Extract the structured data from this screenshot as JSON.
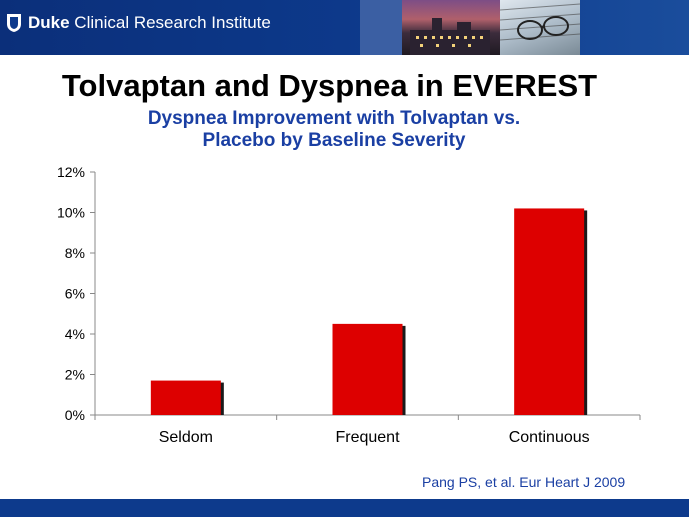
{
  "header": {
    "logo_bold": "Duke",
    "logo_rest": " Clinical Research Institute"
  },
  "slide": {
    "title": "Tolvaptan and Dyspnea in EVEREST",
    "subtitle_line1": "Dyspnea Improvement with Tolvaptan vs.",
    "subtitle_line2": "Placebo by Baseline Severity",
    "citation": "Pang PS, et al. Eur Heart J 2009"
  },
  "colors": {
    "bar": "#dd0000",
    "bar_shadow": "#1a1a1a",
    "header": "#0d3a8c",
    "subtitle": "#1a3fa3"
  },
  "chart_data": {
    "type": "bar",
    "title": "Dyspnea Improvement with Tolvaptan vs. Placebo by Baseline Severity",
    "xlabel": "",
    "ylabel": "",
    "categories": [
      "Seldom",
      "Frequent",
      "Continuous"
    ],
    "values": [
      1.7,
      4.5,
      10.2
    ],
    "ylim": [
      0,
      12
    ],
    "yticks": [
      0,
      2,
      4,
      6,
      8,
      10,
      12
    ],
    "ytick_labels": [
      "0%",
      "2%",
      "4%",
      "6%",
      "8%",
      "10%",
      "12%"
    ],
    "grid": false,
    "legend": "none"
  }
}
